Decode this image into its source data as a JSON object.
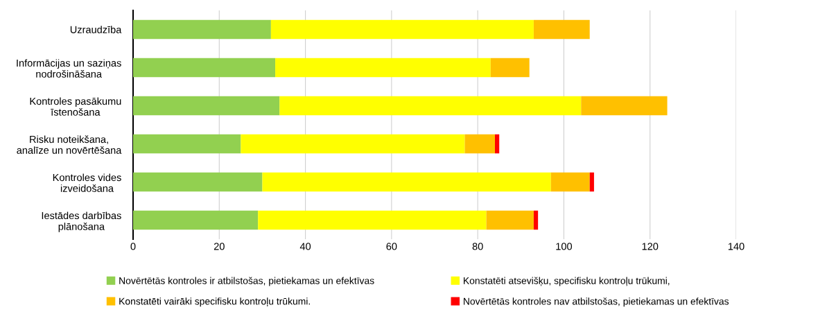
{
  "chart_data": {
    "type": "bar",
    "orientation": "horizontal",
    "stacked": true,
    "categories": [
      "Uzraudzība",
      "Informācijas un saziņas\nnodrošināšana",
      "Kontroles pasākumu\nīstenošana",
      "Risku noteikšana,\nanalīze un novērtēšana",
      "Kontroles vides\nizveidošana",
      "Iestādes darbības\nplānošana"
    ],
    "series": [
      {
        "name": "Novērtētās kontroles ir atbilstošas, pietiekamas un efektīvas",
        "color": "#92d050",
        "values": [
          32,
          33,
          34,
          25,
          30,
          29
        ]
      },
      {
        "name": "Konstatēti atsevišķu, specifisku kontroļu trūkumi,",
        "color": "#ffff00",
        "values": [
          61,
          50,
          70,
          52,
          67,
          53
        ]
      },
      {
        "name": "Konstatēti vairāki specifisku kontroļu trūkumi.",
        "color": "#ffc000",
        "values": [
          13,
          9,
          20,
          7,
          9,
          11
        ]
      },
      {
        "name": "Novērtētās kontroles nav atbilstošas, pietiekamas un efektīvas",
        "color": "#ff0000",
        "values": [
          null,
          null,
          null,
          1,
          1,
          1
        ]
      }
    ],
    "xlim": [
      0,
      140
    ],
    "xticks": [
      0,
      20,
      40,
      60,
      80,
      100,
      120,
      140
    ],
    "grid": "x",
    "legend": "bottom"
  }
}
